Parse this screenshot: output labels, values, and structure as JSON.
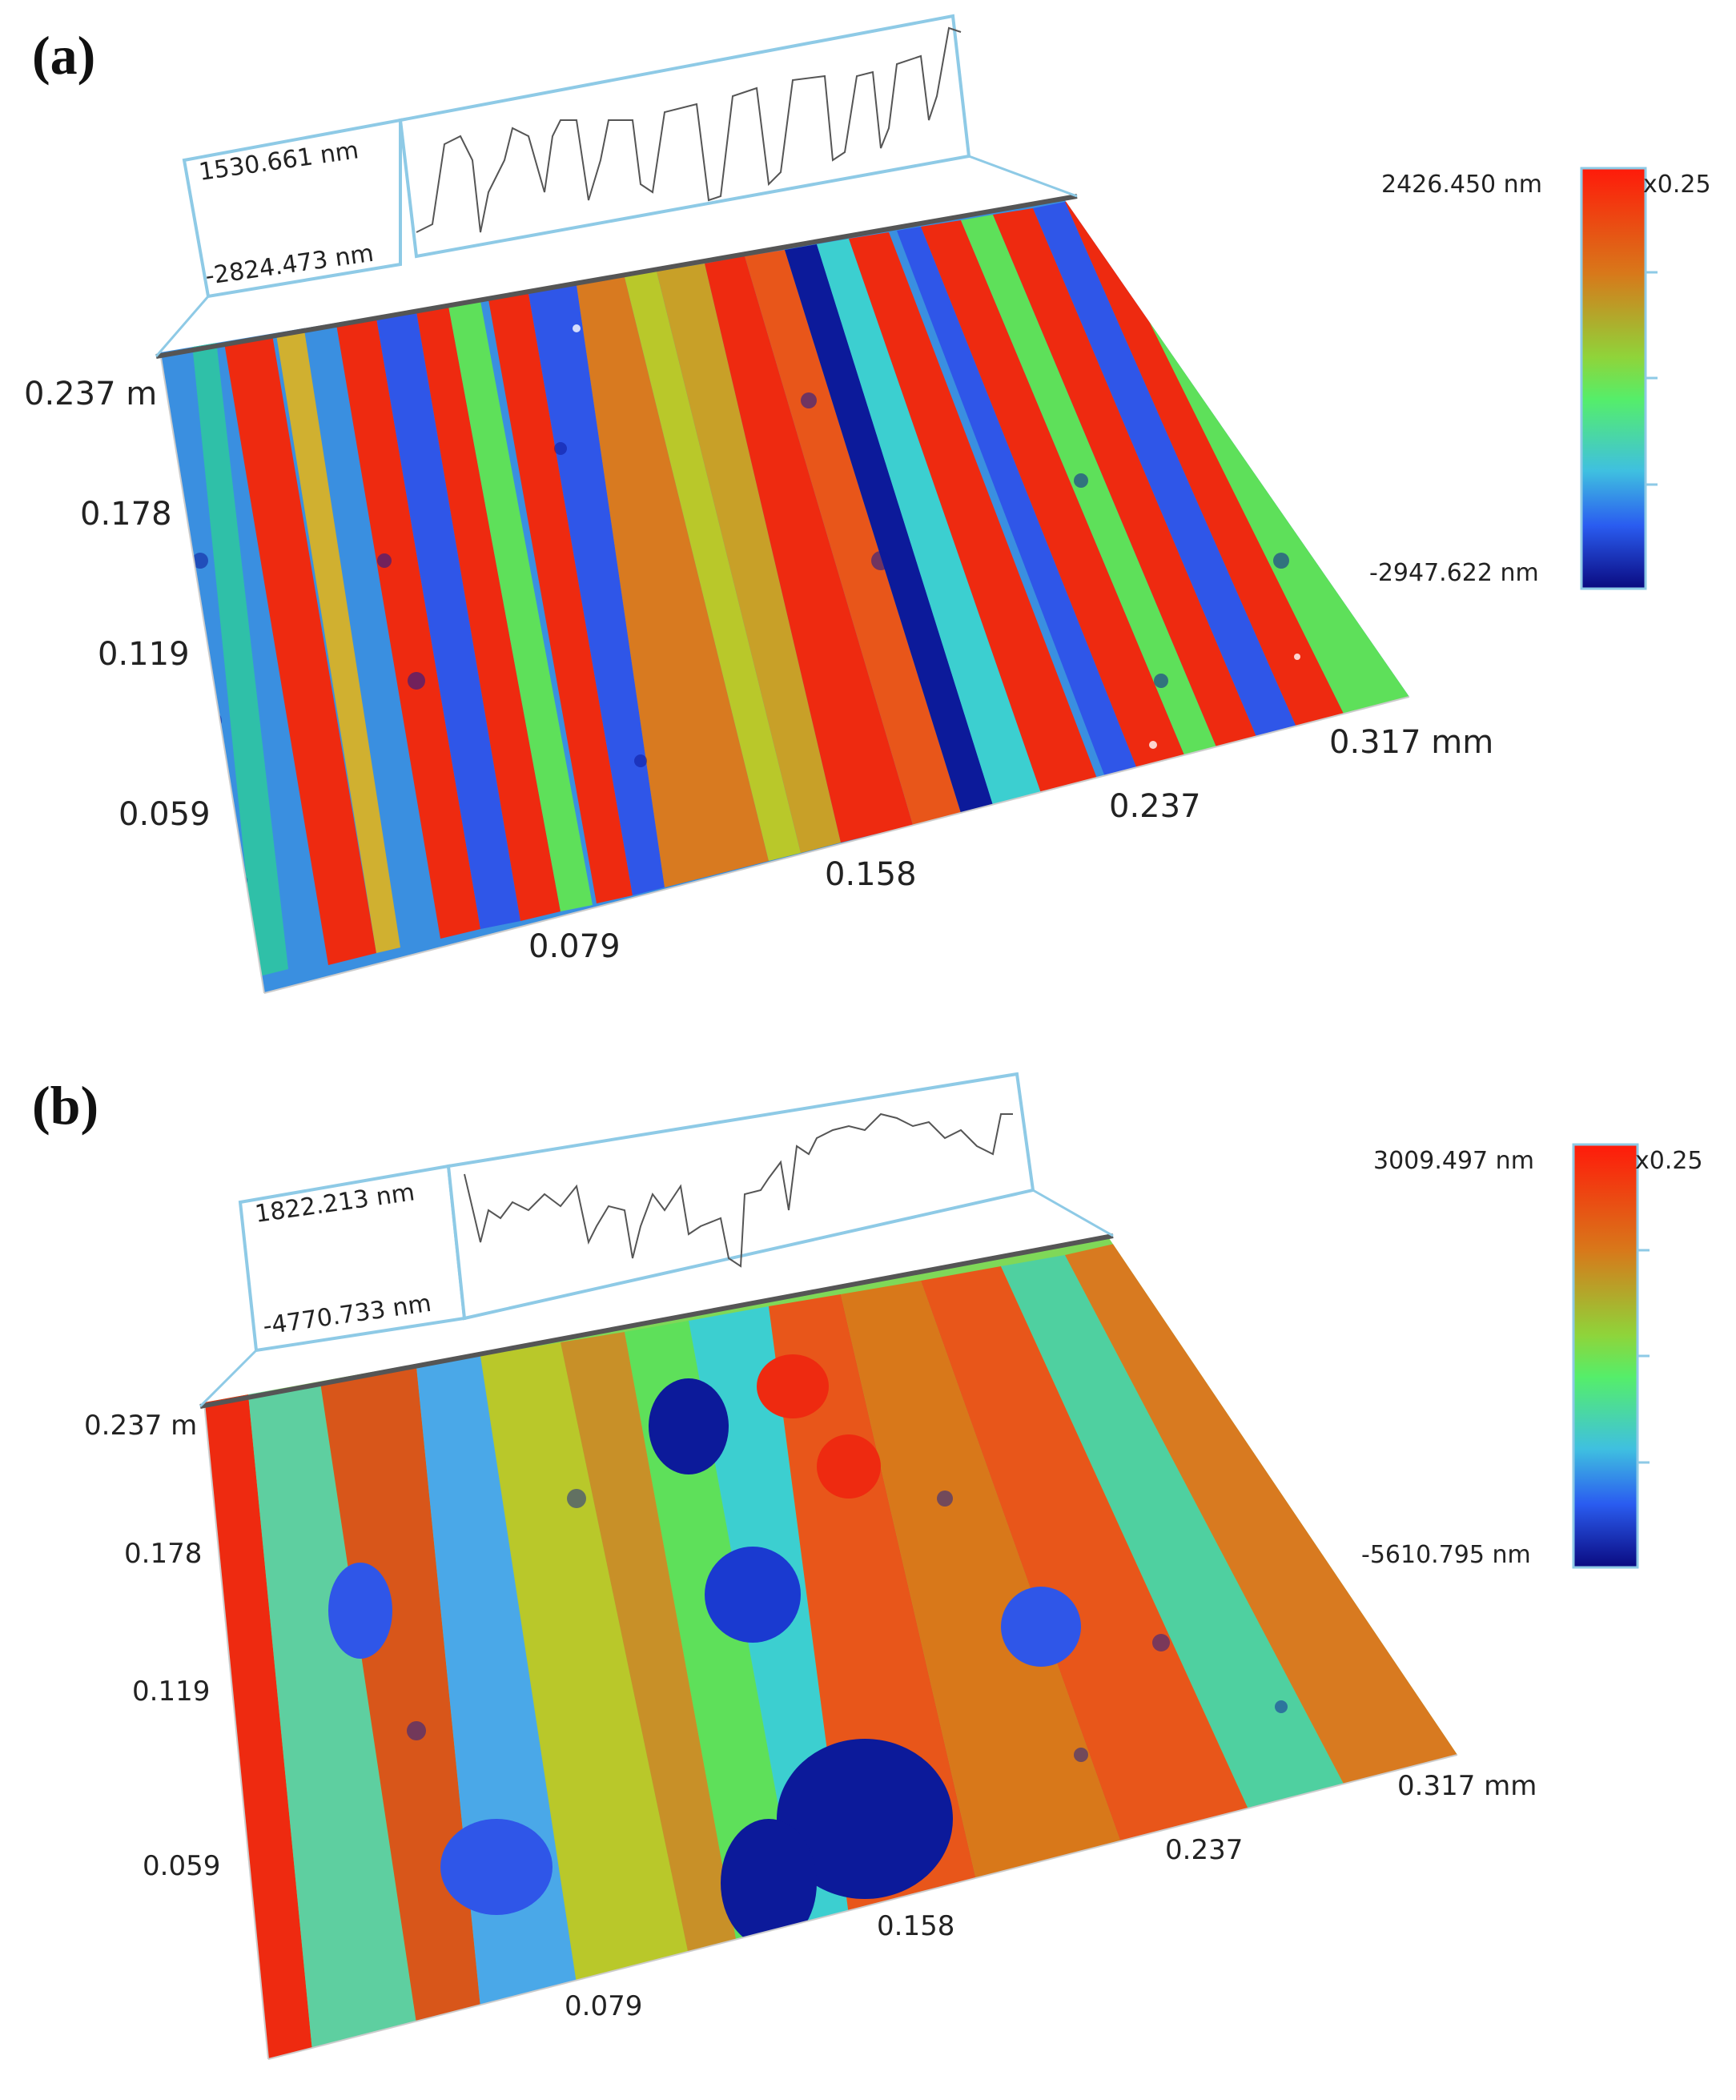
{
  "panels": [
    {
      "label": "(a)",
      "profile_max": "1530.661 nm",
      "profile_min": "-2824.473 nm",
      "scale_max": "2426.450 nm",
      "scale_min": "-2947.622 nm",
      "scale_factor": "x0.25",
      "y_ticks": [
        "0.237 m",
        "0.178",
        "0.119",
        "0.059"
      ],
      "x_ticks": [
        "0.079",
        "0.158",
        "0.237",
        "0.317 mm"
      ]
    },
    {
      "label": "(b)",
      "profile_max": "1822.213 nm",
      "profile_min": "-4770.733 nm",
      "scale_max": "3009.497 nm",
      "scale_min": "-5610.795 nm",
      "scale_factor": "x0.25",
      "y_ticks": [
        "0.237 m",
        "0.178",
        "0.119",
        "0.059"
      ],
      "x_ticks": [
        "0.079",
        "0.158",
        "0.237",
        "0.317 mm"
      ]
    }
  ],
  "colors": {
    "frame": "#8ecae6",
    "red": "#ee2a10",
    "orange": "#e8561a",
    "yellow_green": "#b9c82a",
    "green": "#5ee05a",
    "cyan": "#3ccfd0",
    "blue": "#2f56e8",
    "navy": "#0c1a9a"
  }
}
